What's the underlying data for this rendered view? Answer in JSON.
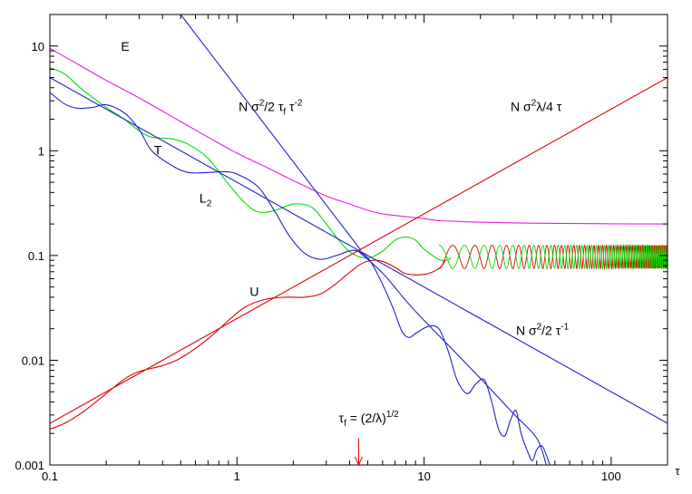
{
  "chart_data": {
    "type": "line",
    "title": "",
    "xlabel": "τ",
    "ylabel": "",
    "x_scale": "log",
    "y_scale": "log",
    "xlim": [
      0.1,
      200
    ],
    "ylim": [
      0.001,
      20
    ],
    "grid": false,
    "legend": "none",
    "x_ticks": [
      {
        "value": 0.1,
        "label": "0.1"
      },
      {
        "value": 1,
        "label": "1"
      },
      {
        "value": 10,
        "label": "10"
      },
      {
        "value": 100,
        "label": "100"
      }
    ],
    "y_ticks": [
      {
        "value": 0.001,
        "label": "0.001"
      },
      {
        "value": 0.01,
        "label": "0.01"
      },
      {
        "value": 0.1,
        "label": "0.1"
      },
      {
        "value": 1,
        "label": "1"
      },
      {
        "value": 10,
        "label": "10"
      }
    ],
    "series": [
      {
        "key": "E",
        "color": "#e020e0",
        "points": [
          [
            0.1,
            9.5
          ],
          [
            0.15,
            6.3
          ],
          [
            0.2,
            4.7
          ],
          [
            0.3,
            3.2
          ],
          [
            0.5,
            1.9
          ],
          [
            0.7,
            1.35
          ],
          [
            1,
            0.95
          ],
          [
            1.5,
            0.67
          ],
          [
            2,
            0.52
          ],
          [
            3,
            0.37
          ],
          [
            4,
            0.31
          ],
          [
            5,
            0.27
          ],
          [
            6,
            0.25
          ],
          [
            8,
            0.235
          ],
          [
            10,
            0.225
          ],
          [
            12,
            0.215
          ],
          [
            15,
            0.212
          ],
          [
            20,
            0.208
          ],
          [
            30,
            0.205
          ],
          [
            50,
            0.203
          ],
          [
            100,
            0.201
          ],
          [
            200,
            0.2
          ]
        ]
      },
      {
        "key": "T",
        "color": "#00dd00",
        "points": [
          [
            0.1,
            6.2
          ],
          [
            0.12,
            5.4
          ],
          [
            0.15,
            3.8
          ],
          [
            0.2,
            2.6
          ],
          [
            0.25,
            2.0
          ],
          [
            0.3,
            1.55
          ],
          [
            0.35,
            1.35
          ],
          [
            0.45,
            1.3
          ],
          [
            0.55,
            1.15
          ],
          [
            0.7,
            0.85
          ],
          [
            0.9,
            0.48
          ],
          [
            1.1,
            0.32
          ],
          [
            1.3,
            0.26
          ],
          [
            1.6,
            0.27
          ],
          [
            2.0,
            0.31
          ],
          [
            2.5,
            0.29
          ],
          [
            3.0,
            0.2
          ],
          [
            3.5,
            0.14
          ],
          [
            4.1,
            0.105
          ],
          [
            5,
            0.095
          ],
          [
            6,
            0.11
          ],
          [
            7,
            0.14
          ],
          [
            8,
            0.15
          ],
          [
            9,
            0.14
          ],
          [
            10,
            0.115
          ],
          [
            12,
            0.092
          ],
          [
            13,
            0.09
          ],
          [
            14,
            0.095
          ]
        ]
      },
      {
        "key": "U",
        "color": "#e00000",
        "points": [
          [
            0.1,
            0.0022
          ],
          [
            0.12,
            0.0025
          ],
          [
            0.15,
            0.0032
          ],
          [
            0.2,
            0.0048
          ],
          [
            0.25,
            0.0066
          ],
          [
            0.3,
            0.0078
          ],
          [
            0.4,
            0.0089
          ],
          [
            0.5,
            0.0105
          ],
          [
            0.7,
            0.016
          ],
          [
            0.9,
            0.024
          ],
          [
            1.1,
            0.032
          ],
          [
            1.4,
            0.038
          ],
          [
            1.8,
            0.04
          ],
          [
            2.3,
            0.04
          ],
          [
            2.8,
            0.043
          ],
          [
            3.3,
            0.052
          ],
          [
            4,
            0.069
          ],
          [
            4.6,
            0.083
          ],
          [
            5.3,
            0.09
          ],
          [
            6,
            0.088
          ],
          [
            7,
            0.077
          ],
          [
            8,
            0.067
          ],
          [
            10,
            0.066
          ],
          [
            12,
            0.075
          ],
          [
            13,
            0.09
          ]
        ]
      },
      {
        "key": "L2",
        "color": "#2020d0",
        "points": [
          [
            0.1,
            3.6
          ],
          [
            0.12,
            2.8
          ],
          [
            0.14,
            2.55
          ],
          [
            0.17,
            2.6
          ],
          [
            0.2,
            2.75
          ],
          [
            0.25,
            2.3
          ],
          [
            0.3,
            1.6
          ],
          [
            0.35,
            1.0
          ],
          [
            0.45,
            0.72
          ],
          [
            0.55,
            0.62
          ],
          [
            0.7,
            0.62
          ],
          [
            0.85,
            0.63
          ],
          [
            1.0,
            0.6
          ],
          [
            1.3,
            0.45
          ],
          [
            1.6,
            0.26
          ],
          [
            1.9,
            0.155
          ],
          [
            2.3,
            0.105
          ],
          [
            2.8,
            0.092
          ],
          [
            3.4,
            0.1
          ],
          [
            4.2,
            0.112
          ],
          [
            5,
            0.095
          ],
          [
            5.8,
            0.06
          ],
          [
            6.8,
            0.032
          ],
          [
            7.6,
            0.019
          ],
          [
            8.3,
            0.0165
          ],
          [
            9,
            0.018
          ],
          [
            10.5,
            0.021
          ],
          [
            12,
            0.02
          ],
          [
            13.5,
            0.012
          ],
          [
            15,
            0.0065
          ],
          [
            17,
            0.0048
          ],
          [
            19,
            0.006
          ],
          [
            21,
            0.0065
          ],
          [
            23,
            0.004
          ],
          [
            25,
            0.0022
          ],
          [
            27,
            0.0019
          ],
          [
            29,
            0.0027
          ],
          [
            31,
            0.0033
          ],
          [
            33,
            0.002
          ],
          [
            36,
            0.0013
          ],
          [
            38,
            0.0011
          ],
          [
            40,
            0.0014
          ],
          [
            43,
            0.0015
          ],
          [
            47,
            0.001
          ]
        ]
      },
      {
        "key": "asym-L2-tail",
        "color": "#2020d0",
        "points": [
          [
            4.4,
            0.112
          ],
          [
            6,
            0.068
          ],
          [
            8,
            0.037
          ],
          [
            10,
            0.024
          ],
          [
            14,
            0.013
          ],
          [
            20,
            0.0067
          ],
          [
            30,
            0.0031
          ],
          [
            40,
            0.0018
          ],
          [
            45,
            0.001
          ]
        ]
      },
      {
        "key": "asym-tau-inv",
        "color": "#2020d0",
        "points": [
          [
            0.1,
            5
          ],
          [
            200,
            0.0025
          ]
        ]
      },
      {
        "key": "asym-tau-sq",
        "color": "#2020d0",
        "points": [
          [
            0.5,
            20
          ],
          [
            4.6,
            0.112
          ]
        ]
      },
      {
        "key": "asym-tau-lin",
        "color": "#e00000",
        "points": [
          [
            0.1,
            0.0025
          ],
          [
            200,
            5
          ]
        ]
      }
    ],
    "oscillations": [
      {
        "color": "#e00000",
        "from": 12,
        "to": 200,
        "center": 0.1,
        "amplitude": 0.025,
        "period_log_start": 0.14,
        "phase": 3.14159
      },
      {
        "color": "#00dd00",
        "from": 12,
        "to": 200,
        "center": 0.1,
        "amplitude": 0.025,
        "period_log_start": 0.14,
        "phase": 0
      }
    ],
    "annotations": [
      {
        "key": "E",
        "text": "E",
        "x": 0.24,
        "y": 9.0
      },
      {
        "key": "T",
        "text": "T",
        "x": 0.36,
        "y": 0.92
      },
      {
        "key": "L2",
        "text": "L",
        "sub": "2",
        "x": 0.63,
        "y": 0.32
      },
      {
        "key": "U",
        "text": "U",
        "x": 1.17,
        "y": 0.041
      },
      {
        "key": "tau-sq",
        "text": "N σ",
        "sup1": "2",
        "mid": "/2 τ",
        "sub": "f",
        "end": " τ",
        "sup2": "-2",
        "x": 1.02,
        "y": 2.4
      },
      {
        "key": "tau-lin",
        "text": "N σ",
        "sup1": "2",
        "mid": "λ/4 τ",
        "x": 29,
        "y": 2.4
      },
      {
        "key": "tau-inv",
        "text": "N σ",
        "sup1": "2",
        "mid": "/2 τ",
        "sup2": "-1",
        "x": 31,
        "y": 0.0175
      },
      {
        "key": "tau-f",
        "text": "τ",
        "sub": "f",
        "mid": " = (2/λ)",
        "sup1": "1/2",
        "x": 3.5,
        "y": 0.00255
      }
    ],
    "arrow": {
      "x": 4.47,
      "from_y": 0.0018,
      "to_y": 0.001,
      "color": "#e00000"
    }
  }
}
